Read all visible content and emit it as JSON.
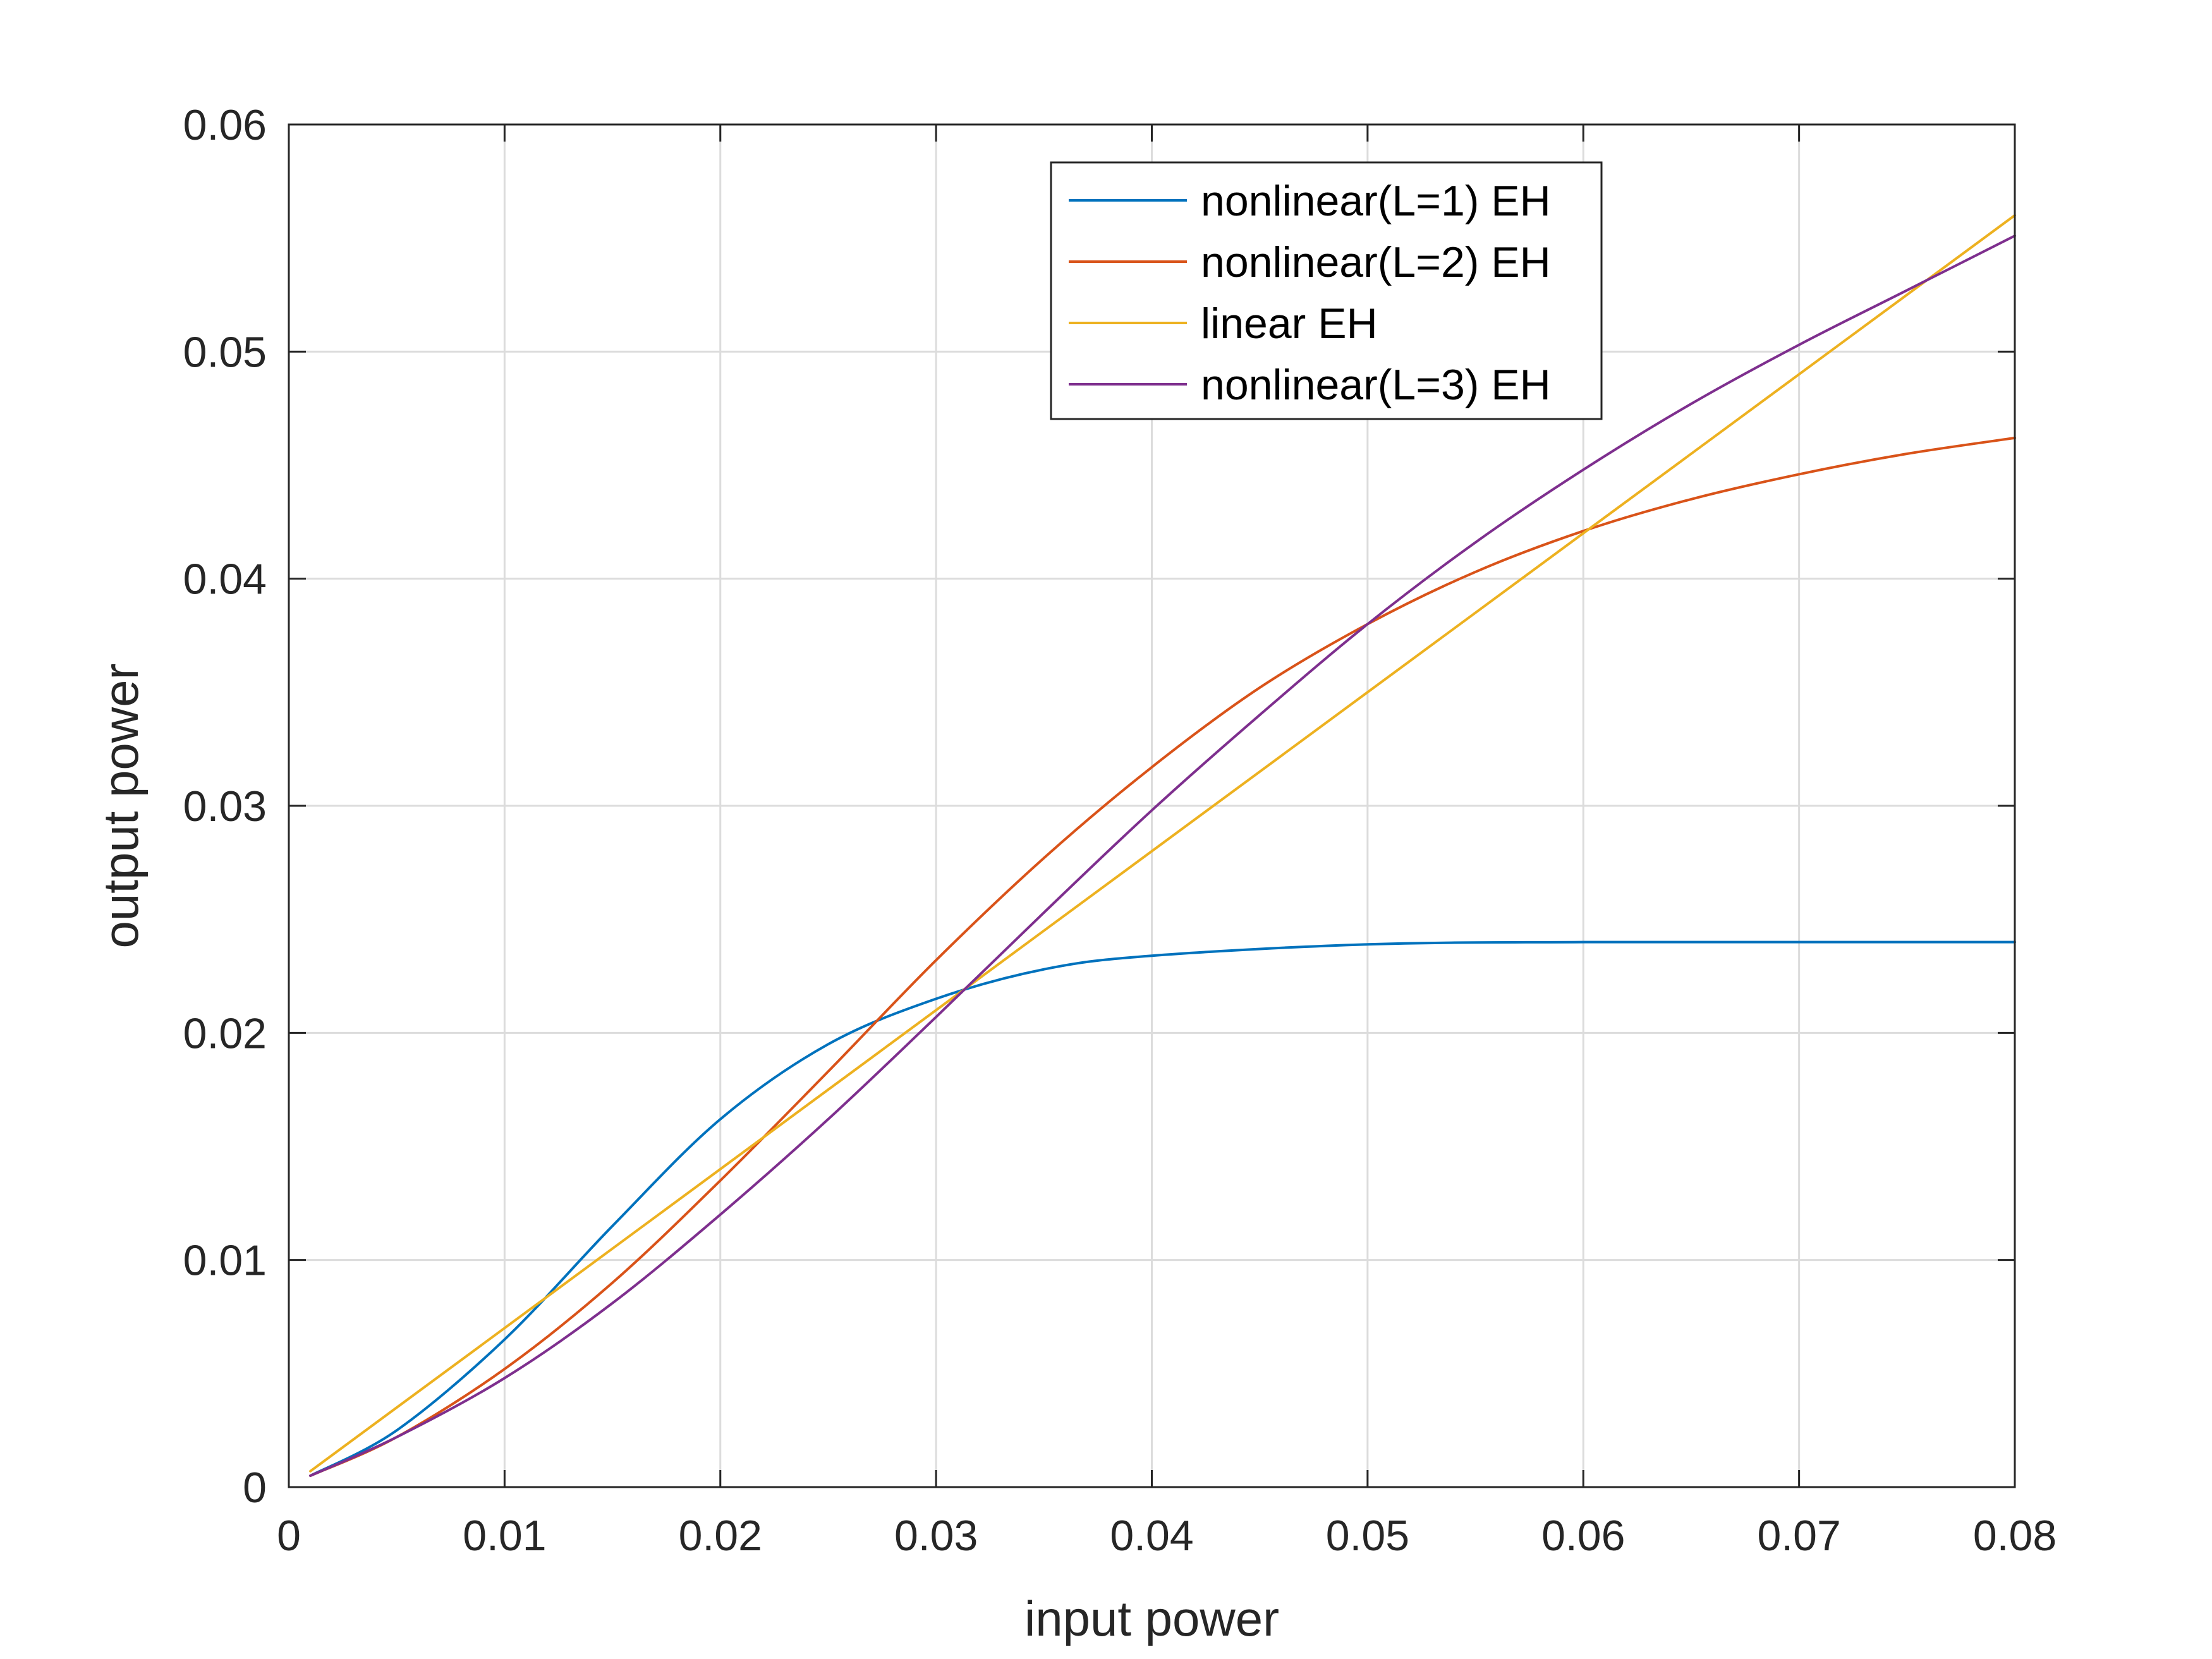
{
  "chart_data": {
    "type": "line",
    "xlabel": "input power",
    "ylabel": "output power",
    "xlim": [
      0,
      0.08
    ],
    "ylim": [
      0,
      0.06
    ],
    "xticks": [
      0,
      0.01,
      0.02,
      0.03,
      0.04,
      0.05,
      0.06,
      0.07,
      0.08
    ],
    "yticks": [
      0,
      0.01,
      0.02,
      0.03,
      0.04,
      0.05,
      0.06
    ],
    "xtick_labels": [
      "0",
      "0.01",
      "0.02",
      "0.03",
      "0.04",
      "0.05",
      "0.06",
      "0.07",
      "0.08"
    ],
    "ytick_labels": [
      "0",
      "0.01",
      "0.02",
      "0.03",
      "0.04",
      "0.05",
      "0.06"
    ],
    "grid": true,
    "legend_position": "top-right",
    "series": [
      {
        "name": "nonlinear(L=1) EH",
        "color": "#0072BD",
        "x": [
          0.001,
          0.005,
          0.01,
          0.015,
          0.02,
          0.025,
          0.03,
          0.035,
          0.04,
          0.05,
          0.06,
          0.07,
          0.08
        ],
        "y": [
          0.0005,
          0.0025,
          0.0065,
          0.0115,
          0.0162,
          0.0195,
          0.0215,
          0.0228,
          0.0234,
          0.0239,
          0.024,
          0.024,
          0.024
        ]
      },
      {
        "name": "nonlinear(L=2) EH",
        "color": "#D95319",
        "x": [
          0.001,
          0.005,
          0.01,
          0.015,
          0.02,
          0.025,
          0.03,
          0.035,
          0.04,
          0.045,
          0.05,
          0.055,
          0.06,
          0.065,
          0.07,
          0.075,
          0.08
        ],
        "y": [
          0.0005,
          0.0022,
          0.0052,
          0.009,
          0.0135,
          0.0183,
          0.0232,
          0.0277,
          0.0317,
          0.0352,
          0.038,
          0.0403,
          0.0421,
          0.0435,
          0.0446,
          0.0455,
          0.0462
        ]
      },
      {
        "name": "linear EH",
        "color": "#EDB120",
        "x": [
          0.001,
          0.08
        ],
        "y": [
          0.0007,
          0.056
        ]
      },
      {
        "name": "nonlinear(L=3) EH",
        "color": "#7E2F8E",
        "x": [
          0.001,
          0.005,
          0.01,
          0.015,
          0.02,
          0.025,
          0.03,
          0.035,
          0.04,
          0.045,
          0.05,
          0.055,
          0.06,
          0.065,
          0.07,
          0.075,
          0.08
        ],
        "y": [
          0.0005,
          0.0022,
          0.0048,
          0.0081,
          0.012,
          0.0162,
          0.0207,
          0.0253,
          0.0298,
          0.034,
          0.038,
          0.0416,
          0.0448,
          0.0477,
          0.0503,
          0.0527,
          0.0551
        ]
      }
    ]
  }
}
